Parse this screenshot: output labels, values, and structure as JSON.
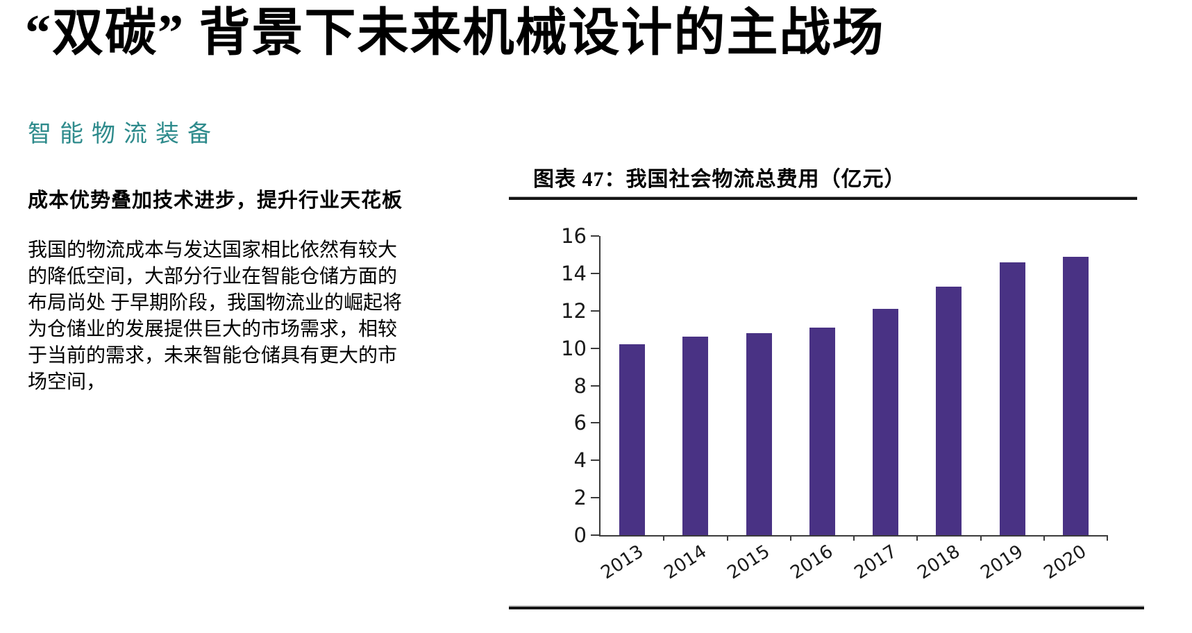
{
  "page": {
    "main_title": "“双碳” 背景下未来机械设计的主战场",
    "section_heading": "智能物流装备",
    "subheading": "成本优势叠加技术进步，提升行业天花板",
    "paragraph_lines": [
      "我国的物流成本与发达国家相比依然有较大",
      "的降低空间，大部分行业在智能仓储方面的",
      "布局尚处 于早期阶段，我国物流业的崛起将",
      "为仓储业的发展提供巨大的市场需求，相较",
      "于当前的需求，未来智能仓储具有更大的市",
      "场空间，"
    ]
  },
  "figure": {
    "title": "图表 47：我国社会物流总费用（亿元）"
  },
  "chart_data": {
    "type": "bar",
    "title": "图表 47：我国社会物流总费用（亿元）",
    "categories": [
      "2013",
      "2014",
      "2015",
      "2016",
      "2017",
      "2018",
      "2019",
      "2020"
    ],
    "values": [
      10.2,
      10.6,
      10.8,
      11.1,
      12.1,
      13.3,
      14.6,
      14.9
    ],
    "xlabel": "",
    "ylabel": "",
    "ylim": [
      0,
      16
    ],
    "yticks": [
      0,
      2,
      4,
      6,
      8,
      10,
      12,
      14,
      16
    ],
    "grid": false,
    "legend_position": "none",
    "bar_color": "#493284"
  },
  "colors": {
    "section_heading_teal": "#2E8B8C",
    "bar_purple": "#493284",
    "axis_gray": "#3b3b3b",
    "text_black": "#000000"
  }
}
